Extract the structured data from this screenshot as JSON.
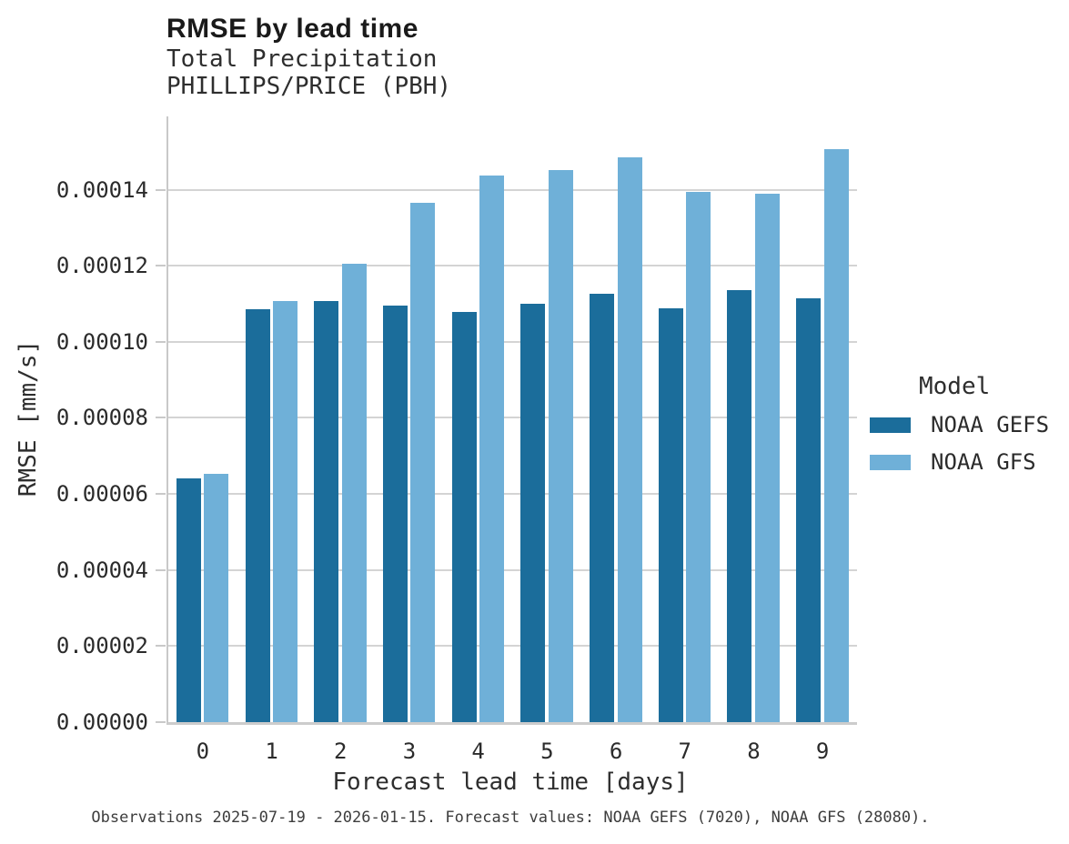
{
  "title": "RMSE by lead time",
  "subtitle_lines": [
    "Total Precipitation",
    "PHILLIPS/PRICE (PBH)"
  ],
  "caption": "Observations 2025-07-19 - 2026-01-15. Forecast values: NOAA GEFS (7020), NOAA GFS (28080).",
  "legend": {
    "title": "Model",
    "entries": [
      {
        "label": "NOAA GEFS",
        "color": "#1b6d9b"
      },
      {
        "label": "NOAA GFS",
        "color": "#6fb0d8"
      }
    ]
  },
  "colors": {
    "gefs_bar": "#1b6d9b",
    "gfs_bar": "#6fb0d8",
    "gridline": "#d4d4d4",
    "spine": "#c9c9c9",
    "text": "#262626",
    "caption_text": "#3d3d3d"
  },
  "chart_data": {
    "type": "bar",
    "title": "RMSE by lead time",
    "subtitle": [
      "Total Precipitation",
      "PHILLIPS/PRICE (PBH)"
    ],
    "xlabel": "Forecast lead time [days]",
    "ylabel": "RMSE [mm/s]",
    "categories": [
      "0",
      "1",
      "2",
      "3",
      "4",
      "5",
      "6",
      "7",
      "8",
      "9"
    ],
    "series": [
      {
        "name": "NOAA GEFS",
        "color": "#1b6d9b",
        "values": [
          6.42e-05,
          0.0001085,
          0.0001106,
          0.0001096,
          0.0001079,
          0.00011,
          0.0001127,
          0.0001088,
          0.0001136,
          0.0001115
        ]
      },
      {
        "name": "NOAA GFS",
        "color": "#6fb0d8",
        "values": [
          6.52e-05,
          0.0001108,
          0.0001206,
          0.0001365,
          0.0001438,
          0.0001451,
          0.0001484,
          0.0001394,
          0.000139,
          0.0001507
        ]
      }
    ],
    "y_ticks": [
      {
        "value": 0.0,
        "label": "0.00000"
      },
      {
        "value": 2e-05,
        "label": "0.00002"
      },
      {
        "value": 4e-05,
        "label": "0.00004"
      },
      {
        "value": 6e-05,
        "label": "0.00006"
      },
      {
        "value": 8e-05,
        "label": "0.00008"
      },
      {
        "value": 0.0001,
        "label": "0.00010"
      },
      {
        "value": 0.00012,
        "label": "0.00012"
      },
      {
        "value": 0.00014,
        "label": "0.00014"
      }
    ],
    "ylim": [
      0,
      0.00015925
    ],
    "grid": true,
    "legend_position": "right"
  }
}
